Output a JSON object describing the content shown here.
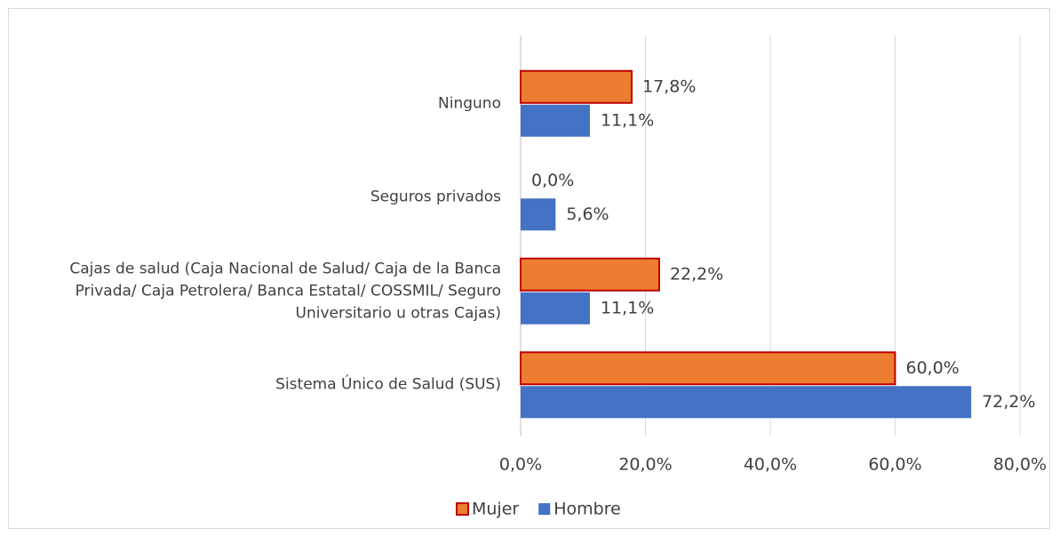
{
  "chart_data": {
    "type": "bar",
    "orientation": "horizontal",
    "categories": [
      "Ninguno",
      "Seguros privados",
      "Cajas de salud (Caja Nacional de Salud/ Caja de la Banca Privada/ Caja Petrolera/ Banca Estatal/ COSSMIL/ Seguro Universitario u otras Cajas)",
      "Sistema Único de Salud (SUS)"
    ],
    "series": [
      {
        "name": "Mujer",
        "color": "#ed7d31",
        "edge": "#c00000",
        "values": [
          17.8,
          0.0,
          22.2,
          60.0
        ],
        "value_labels": [
          "17,8%",
          "0,0%",
          "22,2%",
          "60,0%"
        ]
      },
      {
        "name": "Hombre",
        "color": "#4472c4",
        "values": [
          11.1,
          5.6,
          11.1,
          72.2
        ],
        "value_labels": [
          "11,1%",
          "5,6%",
          "11,1%",
          "72,2%"
        ]
      }
    ],
    "xlim": [
      0,
      80
    ],
    "xticks": [
      {
        "value": 0,
        "label": "0,0%"
      },
      {
        "value": 20,
        "label": "20,0%"
      },
      {
        "value": 40,
        "label": "40,0%"
      },
      {
        "value": 60,
        "label": "60,0%"
      },
      {
        "value": 80,
        "label": "80,0%"
      }
    ],
    "grid": true,
    "legend": "bottom"
  }
}
